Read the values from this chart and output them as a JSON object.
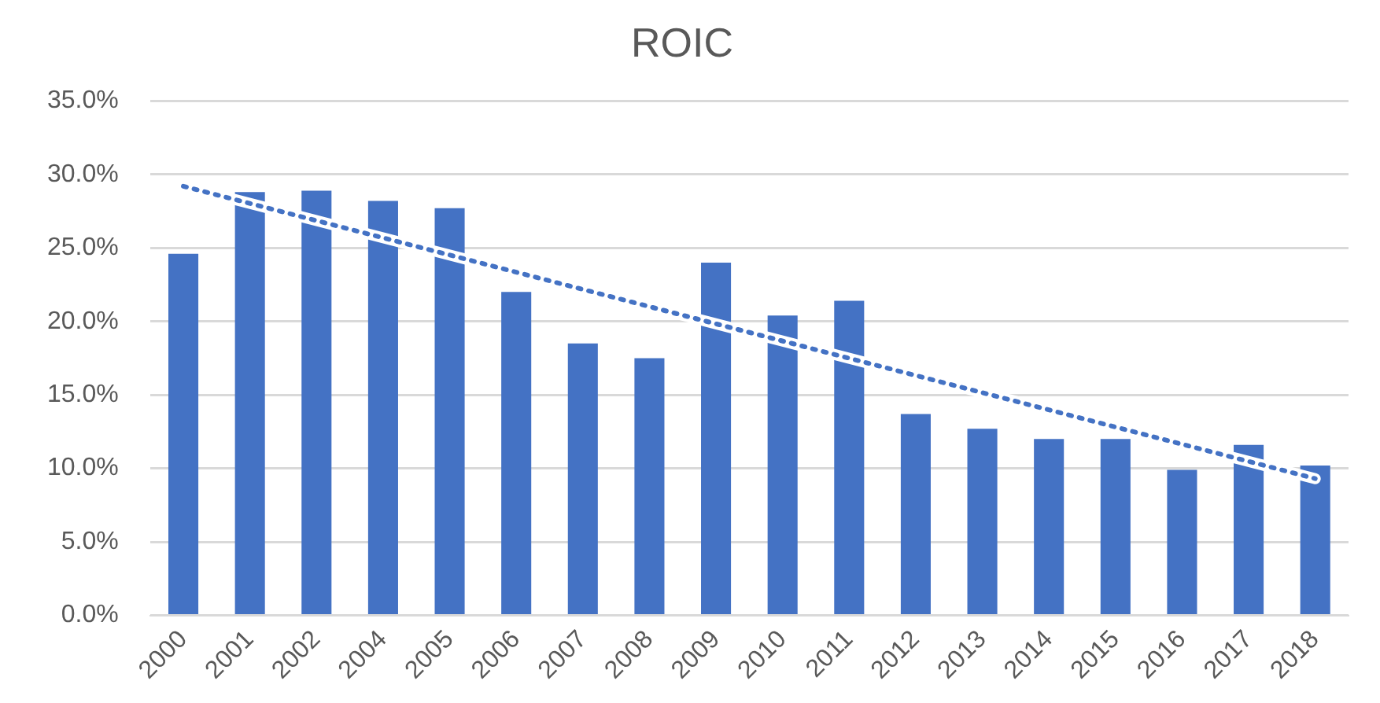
{
  "chart_data": {
    "type": "bar",
    "title": "ROIC",
    "categories": [
      "2000",
      "2001",
      "2002",
      "2004",
      "2005",
      "2006",
      "2007",
      "2008",
      "2009",
      "2010",
      "2011",
      "2012",
      "2013",
      "2014",
      "2015",
      "2016",
      "2017",
      "2018"
    ],
    "series": [
      {
        "color": "#4472c4",
        "values": [
          24.6,
          28.8,
          28.9,
          28.2,
          27.7,
          22.0,
          18.5,
          17.5,
          24.0,
          20.4,
          21.4,
          13.7,
          12.7,
          12.0,
          12.0,
          9.9,
          11.6,
          10.2
        ]
      },
      {
        "type": "line",
        "color": "#4472c4",
        "values": [
          29.2,
          null,
          null,
          null,
          null,
          null,
          null,
          null,
          null,
          null,
          null,
          null,
          null,
          null,
          null,
          null,
          null,
          9.3
        ],
        "line_style": "dotted",
        "marker": "none"
      }
    ],
    "ylim": [
      0,
      35
    ],
    "yticks": [
      {
        "value": 0,
        "label": "0.0%"
      },
      {
        "value": 5,
        "label": "5.0%"
      },
      {
        "value": 10,
        "label": "10.0%"
      },
      {
        "value": 15,
        "label": "15.0%"
      },
      {
        "value": 20,
        "label": "20.0%"
      },
      {
        "value": 25,
        "label": "25.0%"
      },
      {
        "value": 30,
        "label": "30.0%"
      },
      {
        "value": 35,
        "label": "35.0%"
      }
    ],
    "grid": "y",
    "legend": false
  }
}
